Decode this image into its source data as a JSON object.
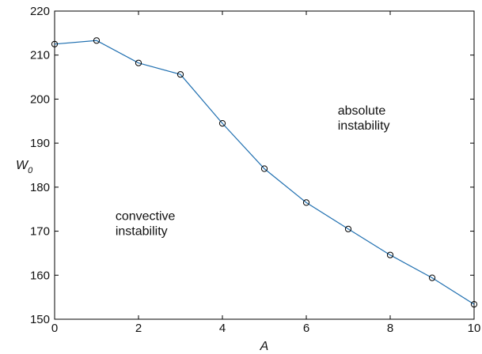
{
  "chart_data": {
    "type": "line",
    "title": "",
    "xlabel": "A",
    "ylabel": {
      "main": "W",
      "subscript": "0"
    },
    "xlim": [
      0,
      10
    ],
    "ylim": [
      150,
      220
    ],
    "xticks": [
      0,
      2,
      4,
      6,
      8,
      10
    ],
    "yticks": [
      150,
      160,
      170,
      180,
      190,
      200,
      210,
      220
    ],
    "grid": false,
    "series": [
      {
        "x": [
          0,
          1,
          2,
          3,
          4,
          5,
          6,
          7,
          8,
          9,
          10
        ],
        "y": [
          212.5,
          213.3,
          208.2,
          205.6,
          194.5,
          184.2,
          176.5,
          170.5,
          164.6,
          159.4,
          153.4
        ],
        "color": "#1f6fb0",
        "marker": "circle"
      }
    ],
    "annotations": [
      {
        "lines": [
          "absolute",
          "instability"
        ],
        "x": 6.75,
        "y": 196.5
      },
      {
        "lines": [
          "convective",
          "instability"
        ],
        "x": 1.45,
        "y": 172.5
      }
    ]
  }
}
